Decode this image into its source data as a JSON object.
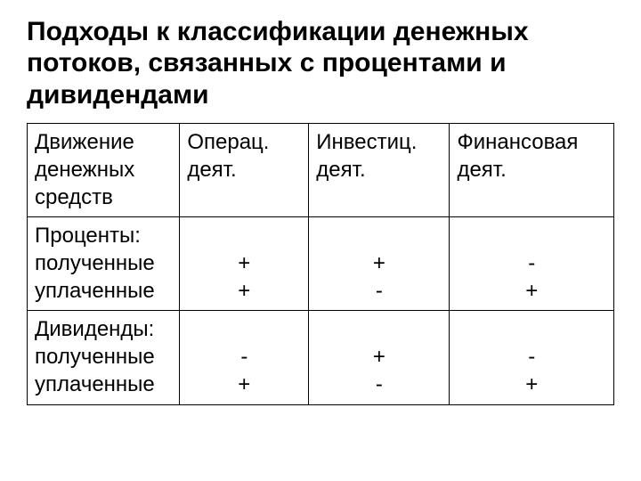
{
  "title": "Подходы к классификации денежных потоков, связанных с процентами и дивидендами",
  "table": {
    "columns": [
      "Движение денежных средств",
      "Операц. деят.",
      "Инвестиц. деят.",
      "Финансовая деят."
    ],
    "rows": [
      {
        "label_lines": [
          "Проценты:",
          "полученные",
          "уплаченные"
        ],
        "c1": [
          "",
          "+",
          "+"
        ],
        "c2": [
          "",
          "+",
          "-"
        ],
        "c3": [
          "",
          "-",
          "+"
        ]
      },
      {
        "label_lines": [
          "Дивиденды:",
          "полученные",
          "уплаченные"
        ],
        "c1": [
          "",
          "-",
          "+"
        ],
        "c2": [
          "",
          "+",
          "-"
        ],
        "c3": [
          "",
          "-",
          "+"
        ]
      }
    ],
    "col_widths_pct": [
      26,
      22,
      24,
      28
    ],
    "border_color": "#000000",
    "background_color": "#ffffff",
    "font_size_pt": 24,
    "title_font_size_pt": 30,
    "title_font_weight": "bold",
    "text_color": "#000000"
  }
}
